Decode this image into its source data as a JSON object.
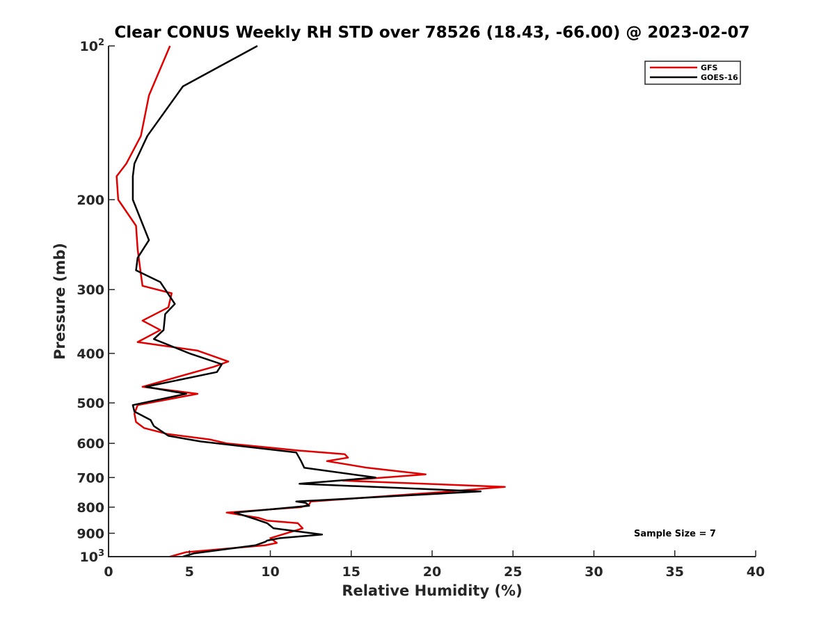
{
  "chart_data": {
    "type": "line",
    "title": "Clear CONUS Weekly RH STD over 78526 (18.43, -66.00) @ 2023-02-07",
    "xlabel": "Relative Humidity (%)",
    "ylabel": "Pressure (mb)",
    "xlim": [
      0,
      40
    ],
    "ylim": [
      100,
      1000
    ],
    "y_scale": "log",
    "y_reversed": true,
    "x_ticks": [
      "0",
      "5",
      "10",
      "15",
      "20",
      "25",
      "30",
      "35",
      "40"
    ],
    "y_ticks": [
      {
        "value": 100,
        "base": "10",
        "exp": "2"
      },
      {
        "value": 200,
        "label": "200"
      },
      {
        "value": 300,
        "label": "300"
      },
      {
        "value": 400,
        "label": "400"
      },
      {
        "value": 500,
        "label": "500"
      },
      {
        "value": 600,
        "label": "600"
      },
      {
        "value": 700,
        "label": "700"
      },
      {
        "value": 800,
        "label": "800"
      },
      {
        "value": 900,
        "label": "900"
      },
      {
        "value": 1000,
        "base": "10",
        "exp": "3"
      }
    ],
    "legend_position": "top-right",
    "grid": false,
    "annotation": "Sample Size = 7",
    "series": [
      {
        "name": "GFS",
        "color": "#e00000",
        "x": [
          3.8,
          2.5,
          2.0,
          1.1,
          0.5,
          0.6,
          1.7,
          1.8,
          2.0,
          2.1,
          3.9,
          3.7,
          2.1,
          3.2,
          1.8,
          5.5,
          7.4,
          6.5,
          2.1,
          5.5,
          1.8,
          1.6,
          1.7,
          2.2,
          3.6,
          6.3,
          7.3,
          11.8,
          14.6,
          14.8,
          13.5,
          16.0,
          19.6,
          14.5,
          24.5,
          20.0,
          12.5,
          12.4,
          11.9,
          7.3,
          9.3,
          9.8,
          11.7,
          12.0,
          10.0,
          10.4,
          9.7,
          4.8,
          3.8
        ],
        "y": [
          100,
          125,
          150,
          170,
          180,
          200,
          225,
          250,
          280,
          295,
          305,
          325,
          345,
          360,
          380,
          395,
          415,
          425,
          465,
          480,
          505,
          525,
          545,
          560,
          575,
          590,
          600,
          620,
          630,
          640,
          650,
          670,
          690,
          710,
          730,
          750,
          780,
          790,
          800,
          820,
          840,
          850,
          860,
          880,
          920,
          940,
          950,
          980,
          1000
        ]
      },
      {
        "name": "GOES-16",
        "color": "#000000",
        "x": [
          9.2,
          4.6,
          2.4,
          1.6,
          1.5,
          1.5,
          2.5,
          1.8,
          1.7,
          3.2,
          4.1,
          3.5,
          3.4,
          2.8,
          5.0,
          7.0,
          6.7,
          2.3,
          4.8,
          1.5,
          1.6,
          2.6,
          2.8,
          3.7,
          5.7,
          11.6,
          11.9,
          12.1,
          16.5,
          11.8,
          23.0,
          11.6,
          12.2,
          12.4,
          7.8,
          9.1,
          9.8,
          10.2,
          13.2,
          10.6,
          9.8,
          9.7,
          9.1,
          5.3,
          4.6
        ],
        "y": [
          100,
          120,
          150,
          170,
          180,
          200,
          240,
          260,
          275,
          290,
          320,
          335,
          360,
          375,
          400,
          420,
          435,
          465,
          480,
          505,
          520,
          540,
          555,
          580,
          595,
          625,
          650,
          670,
          700,
          720,
          745,
          780,
          785,
          795,
          820,
          845,
          860,
          880,
          905,
          920,
          930,
          935,
          950,
          985,
          1000
        ]
      }
    ]
  }
}
